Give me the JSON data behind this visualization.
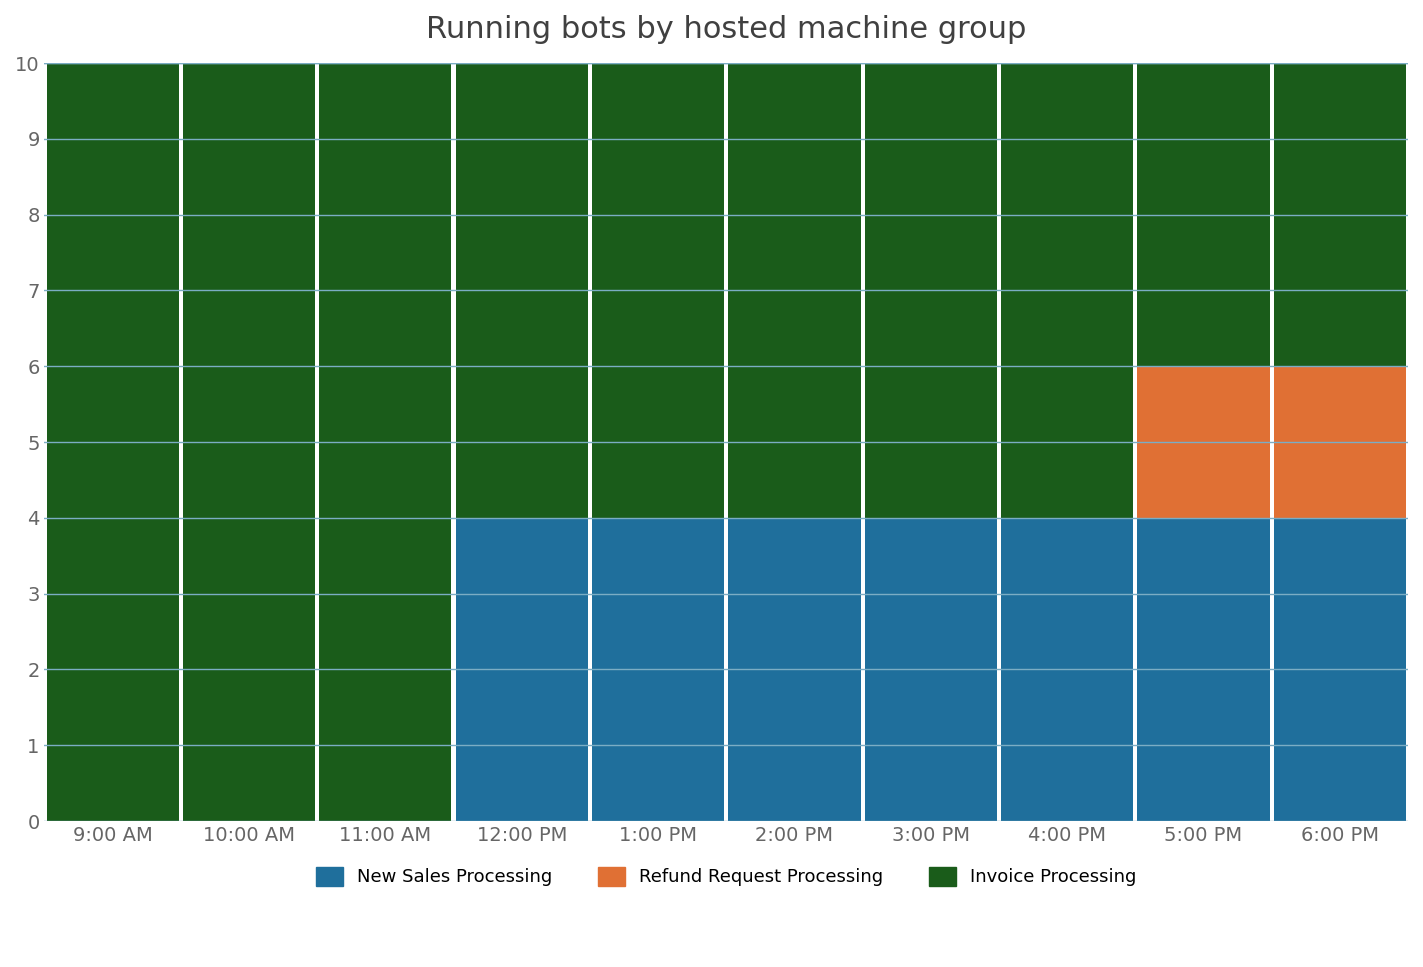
{
  "title": "Running bots by hosted machine group",
  "categories": [
    "9:00 AM",
    "10:00 AM",
    "11:00 AM",
    "12:00 PM",
    "1:00 PM",
    "2:00 PM",
    "3:00 PM",
    "4:00 PM",
    "5:00 PM",
    "6:00 PM"
  ],
  "new_sales": [
    0,
    0,
    0,
    4,
    4,
    4,
    4,
    4,
    4,
    4
  ],
  "refund_request": [
    0,
    0,
    0,
    0,
    0,
    0,
    0,
    0,
    2,
    2
  ],
  "invoice": [
    10,
    10,
    10,
    6,
    6,
    6,
    6,
    6,
    4,
    4
  ],
  "color_new_sales": "#1F6F9C",
  "color_refund": "#E07034",
  "color_invoice": "#1A5C1A",
  "background_color": "#FFFFFF",
  "ylim": [
    0,
    10
  ],
  "yticks": [
    0,
    1,
    2,
    3,
    4,
    5,
    6,
    7,
    8,
    9,
    10
  ],
  "legend_labels": [
    "New Sales Processing",
    "Refund Request Processing",
    "Invoice Processing"
  ],
  "title_fontsize": 22,
  "tick_fontsize": 14,
  "legend_fontsize": 13,
  "bar_width": 0.97,
  "grid_color": "#7BADC4",
  "grid_linewidth": 1.0
}
